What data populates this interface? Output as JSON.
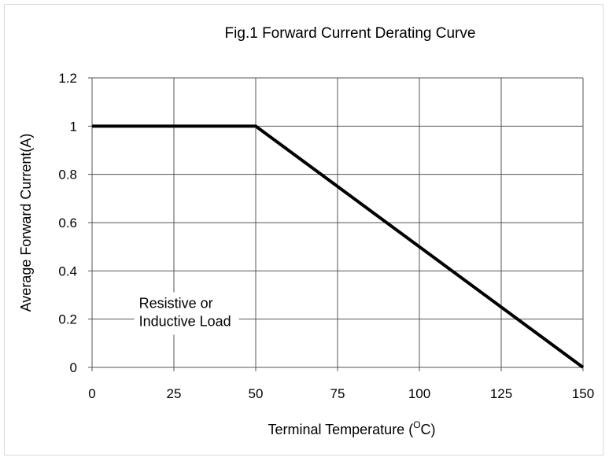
{
  "chart_data": {
    "type": "line",
    "title": "Fig.1 Forward Current Derating Curve",
    "xlabel": "Terminal Temperature (",
    "xlabel_sup": "O",
    "xlabel_suffix": "C)",
    "ylabel": "Average Forward  Current(A)",
    "xlim": [
      0,
      150
    ],
    "ylim": [
      0,
      1.2
    ],
    "x_ticks": [
      0,
      25,
      50,
      75,
      100,
      125,
      150
    ],
    "y_ticks": [
      0,
      0.2,
      0.4,
      0.6,
      0.8,
      1,
      1.2
    ],
    "x_tick_labels": [
      "0",
      "25",
      "50",
      "75",
      "100",
      "125",
      "150"
    ],
    "y_tick_labels": [
      "0",
      "0.2",
      "0.4",
      "0.6",
      "0.8",
      "1",
      "1.2"
    ],
    "grid": true,
    "series": [
      {
        "x": [
          0,
          50,
          150
        ],
        "y": [
          1,
          1,
          0
        ],
        "color": "#000000"
      }
    ],
    "annotation": {
      "lines": [
        "Resistive or",
        "Inductive Load"
      ],
      "x": 10,
      "y": 0.22
    }
  }
}
